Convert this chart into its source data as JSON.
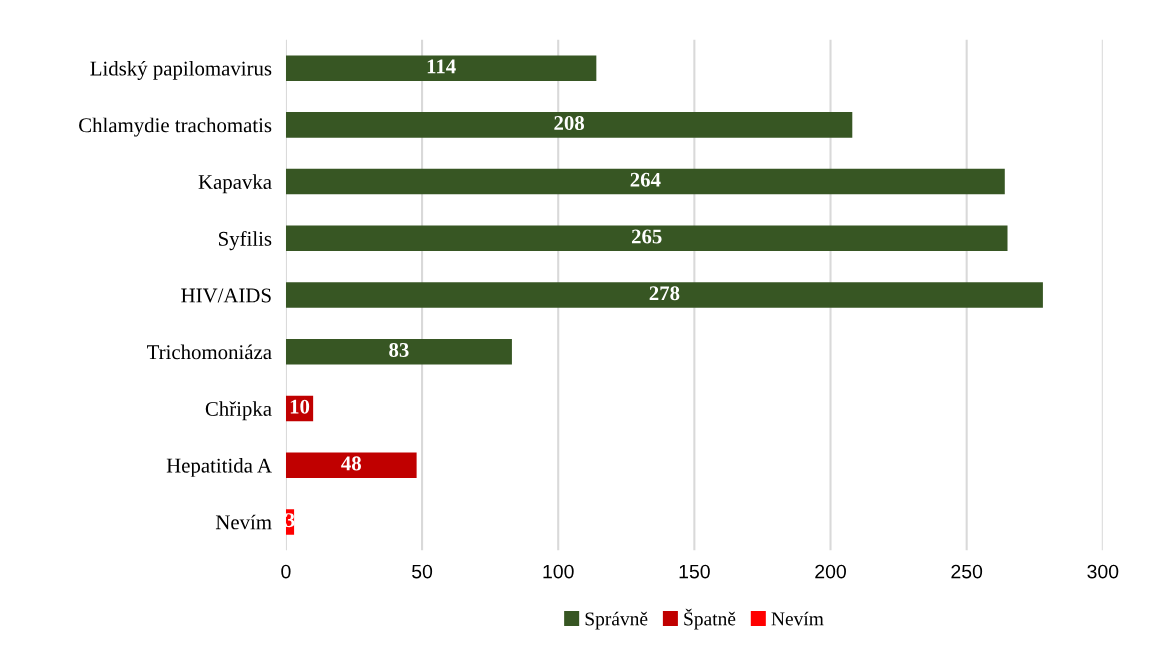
{
  "chart_data": {
    "type": "bar",
    "orientation": "horizontal",
    "categories": [
      "Lidský papilomavirus",
      "Chlamydie trachomatis",
      "Kapavka",
      "Syfilis",
      "HIV/AIDS",
      "Trichomoniáza",
      "Chřipka",
      "Hepatitida A",
      "Nevím"
    ],
    "series": [
      {
        "name": "Správně",
        "color": "#375623",
        "values": [
          114,
          208,
          264,
          265,
          278,
          83,
          null,
          null,
          null
        ]
      },
      {
        "name": "Špatně",
        "color": "#c00000",
        "values": [
          null,
          null,
          null,
          null,
          null,
          null,
          10,
          48,
          null
        ]
      },
      {
        "name": "Nevím",
        "color": "#ff0000",
        "values": [
          null,
          null,
          null,
          null,
          null,
          null,
          null,
          null,
          3
        ]
      }
    ],
    "xlim": [
      0,
      300
    ],
    "xticks": [
      0,
      50,
      100,
      150,
      200,
      250,
      300
    ],
    "grid": "x",
    "legend": "bottom",
    "data_labels": true
  }
}
